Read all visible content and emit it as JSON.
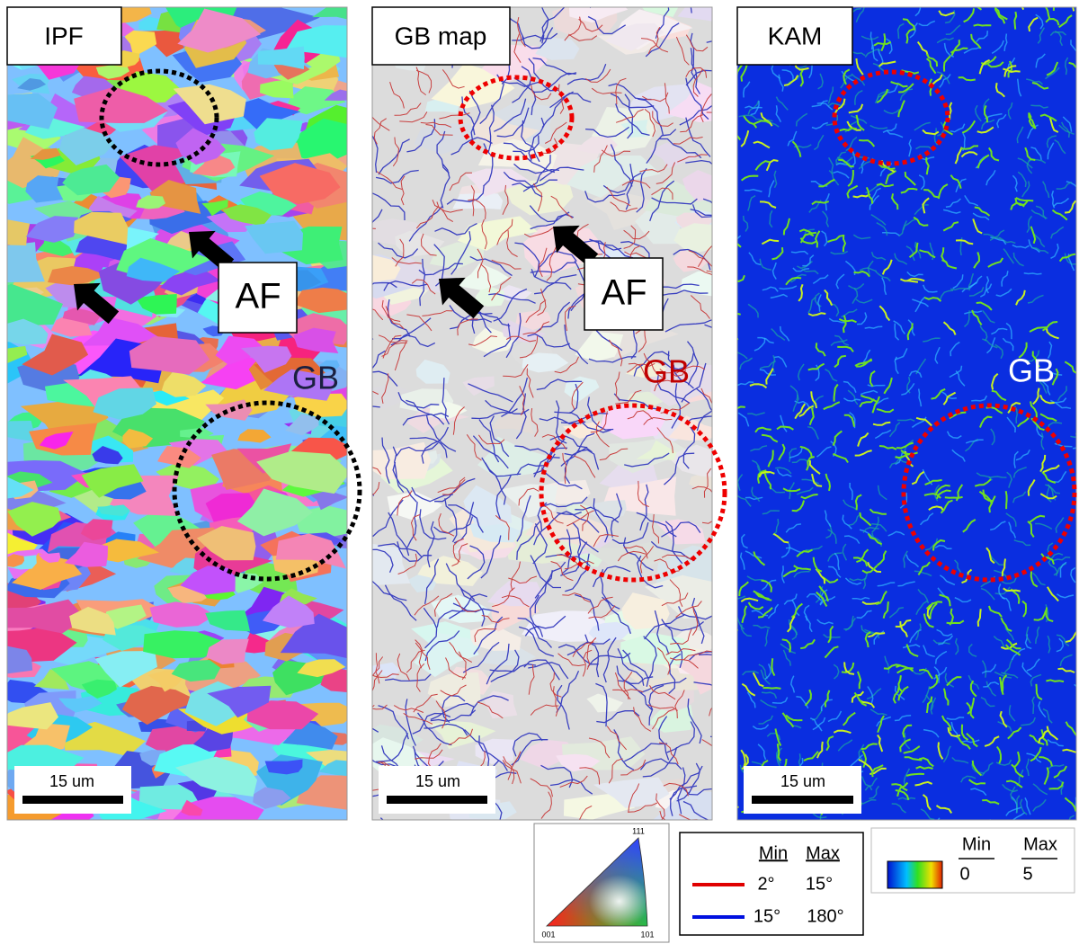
{
  "panels": [
    {
      "label": "IPF",
      "af_label": "AF",
      "gb_label": "GB",
      "scale_bar": "15 um"
    },
    {
      "label": "GB map",
      "af_label": "AF",
      "gb_label": "GB",
      "scale_bar": "15 um"
    },
    {
      "label": "KAM",
      "gb_label": "GB",
      "scale_bar": "15 um"
    }
  ],
  "legends": {
    "ipf": {
      "top": "111",
      "left": "001",
      "right": "101"
    },
    "gb": {
      "headers": [
        "Min",
        "Max"
      ],
      "rows": [
        {
          "min": "2°",
          "max": "15°"
        },
        {
          "min": "15°",
          "max": "180°"
        }
      ]
    },
    "kam": {
      "headers": [
        "Min",
        "Max"
      ],
      "min": "0",
      "max": "5"
    }
  }
}
